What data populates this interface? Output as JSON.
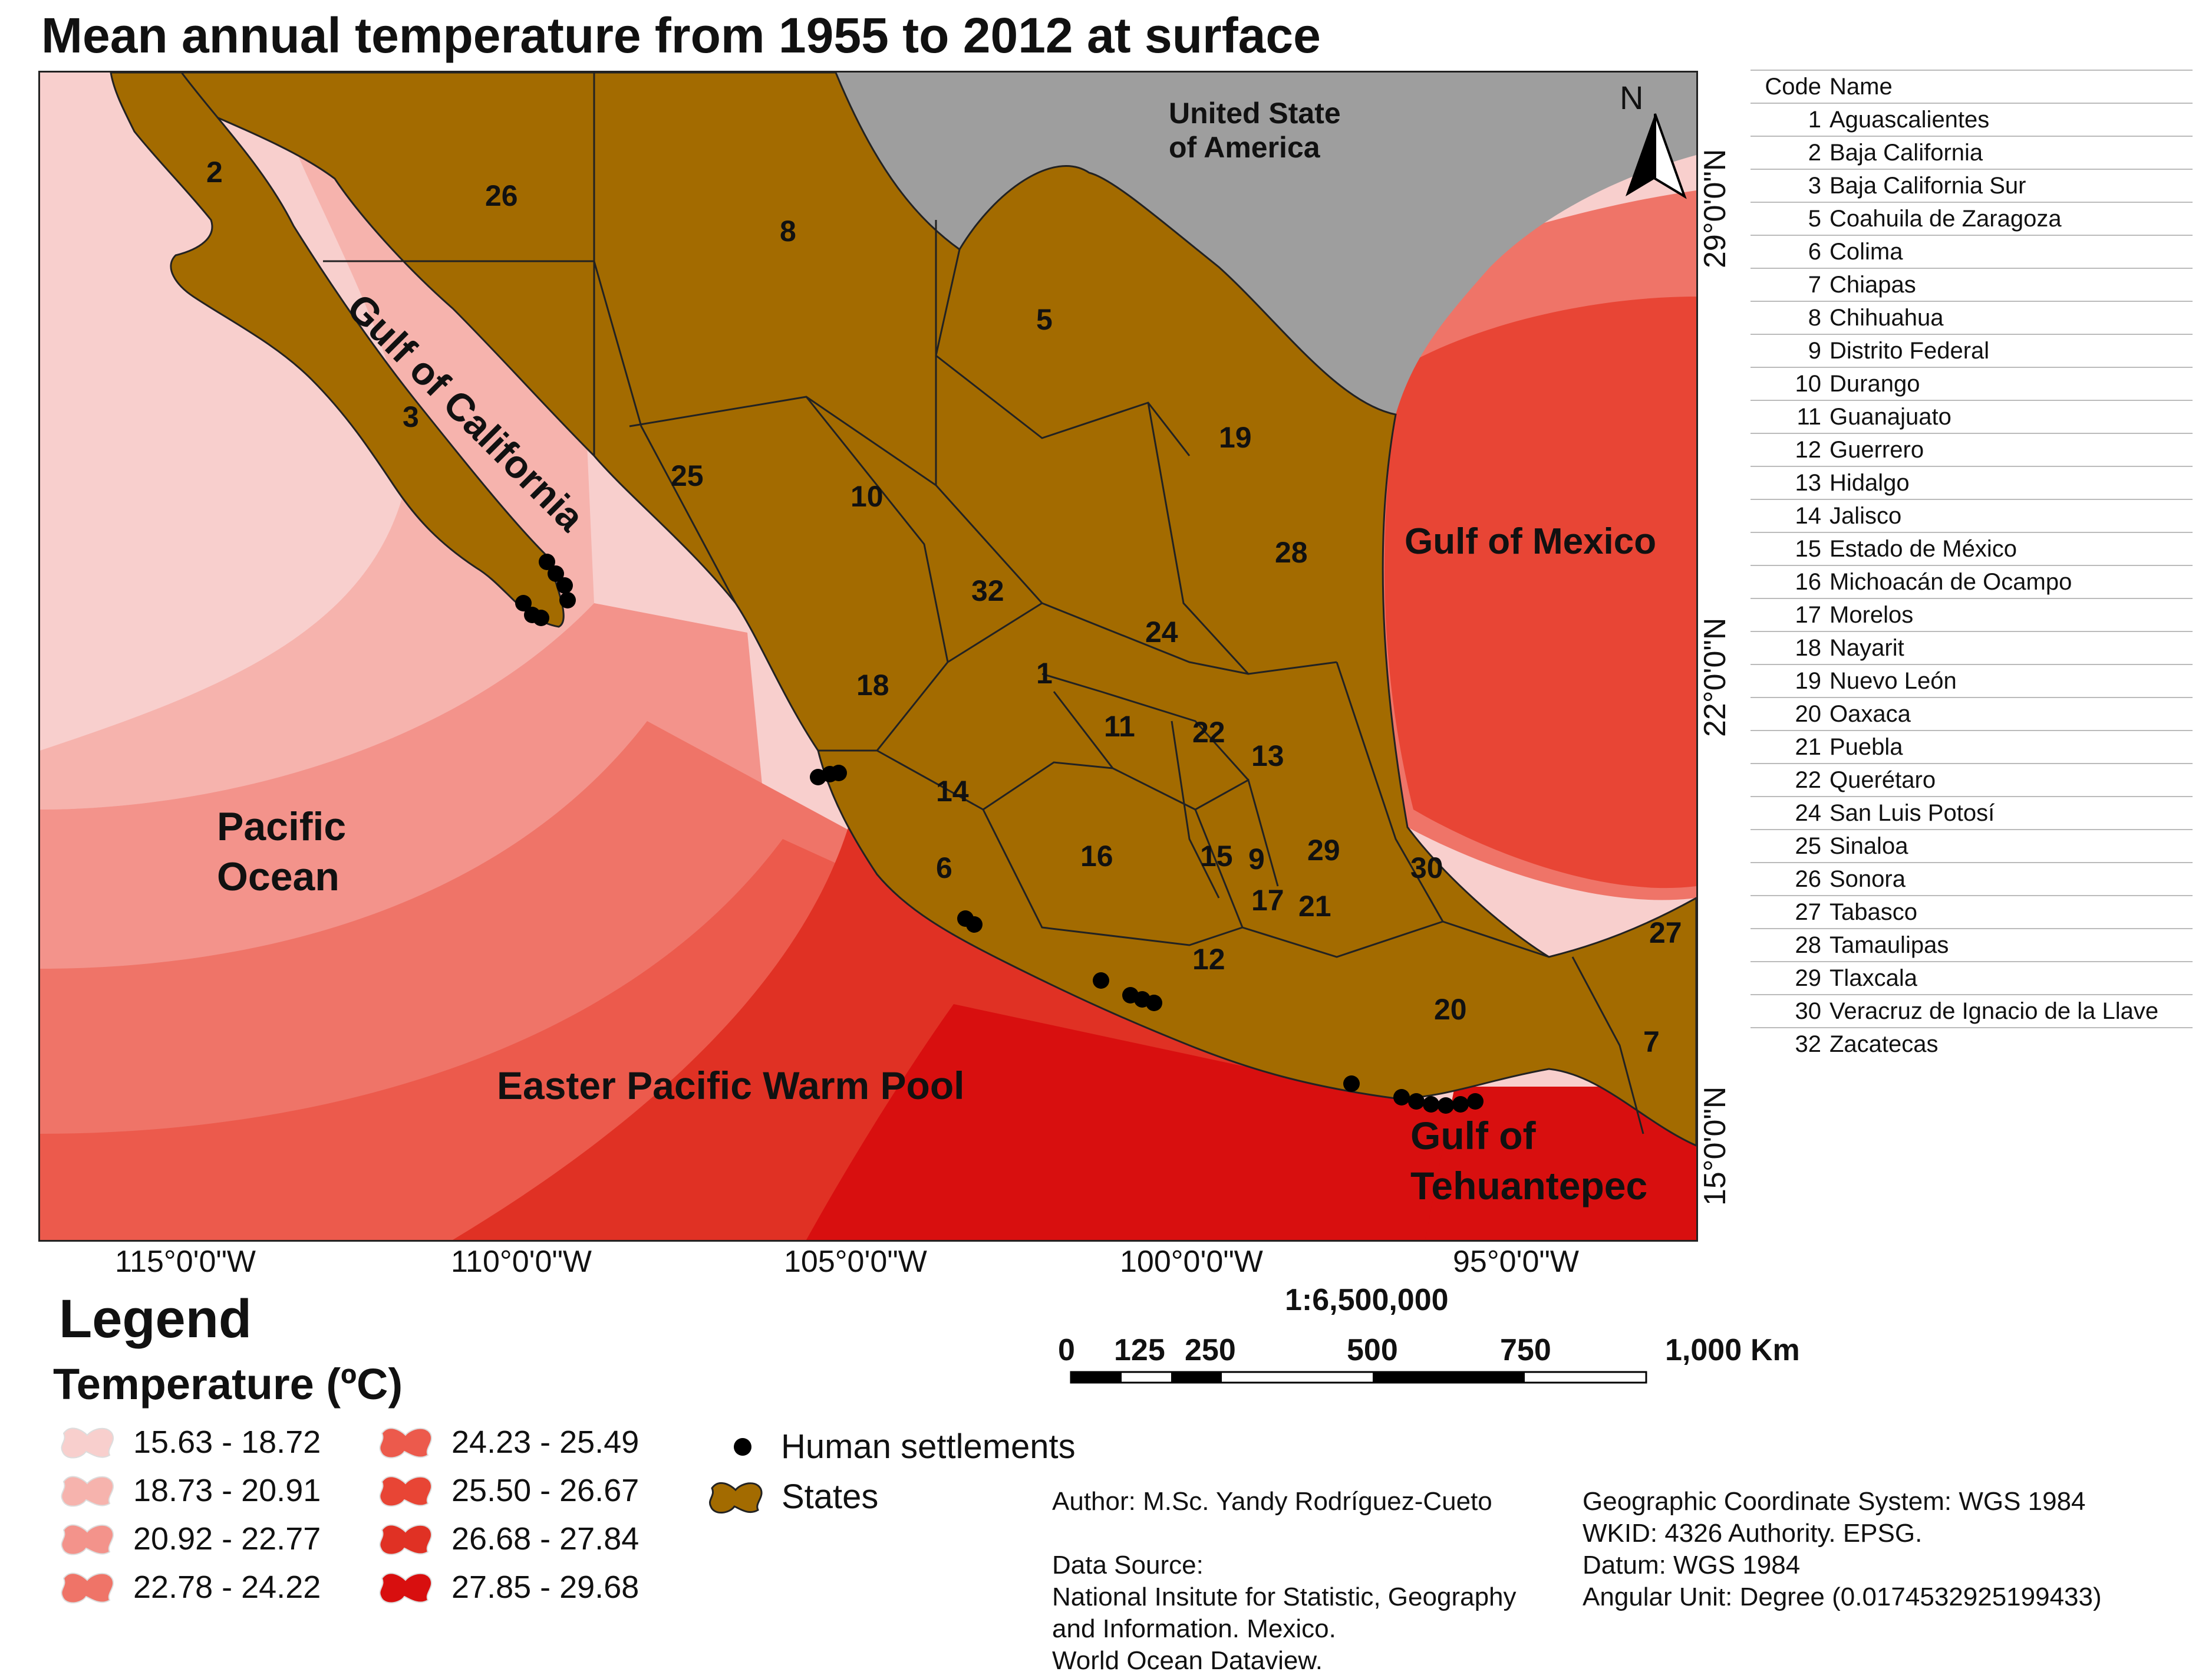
{
  "title": "Mean annual temperature from 1955 to 2012 at surface",
  "map_labels": {
    "usa": [
      "United State",
      "of America"
    ],
    "gulf_california": "Gulf of California",
    "gulf_mexico": "Gulf of Mexico",
    "pacific": [
      "Pacific",
      "Ocean"
    ],
    "warm_pool": "Easter Pacific Warm Pool",
    "tehuantepec": [
      "Gulf of",
      "Tehuantepec"
    ],
    "north": "N"
  },
  "state_numbers": [
    "2",
    "26",
    "8",
    "5",
    "3",
    "25",
    "10",
    "19",
    "28",
    "32",
    "24",
    "1",
    "18",
    "11",
    "22",
    "13",
    "14",
    "6",
    "16",
    "15",
    "9",
    "29",
    "30",
    "17",
    "21",
    "12",
    "20",
    "27",
    "7"
  ],
  "longitude_labels": [
    "115°0'0\"W",
    "110°0'0\"W",
    "105°0'0\"W",
    "100°0'0\"W",
    "95°0'0\"W"
  ],
  "latitude_labels": [
    "29°0'0\"N",
    "22°0'0\"N",
    "15°0'0\"N"
  ],
  "code_table": {
    "headers": [
      "Code",
      "Name"
    ],
    "rows": [
      [
        "1",
        "Aguascalientes"
      ],
      [
        "2",
        "Baja California"
      ],
      [
        "3",
        "Baja California Sur"
      ],
      [
        "5",
        "Coahuila de Zaragoza"
      ],
      [
        "6",
        "Colima"
      ],
      [
        "7",
        "Chiapas"
      ],
      [
        "8",
        "Chihuahua"
      ],
      [
        "9",
        "Distrito Federal"
      ],
      [
        "10",
        "Durango"
      ],
      [
        "11",
        "Guanajuato"
      ],
      [
        "12",
        "Guerrero"
      ],
      [
        "13",
        "Hidalgo"
      ],
      [
        "14",
        "Jalisco"
      ],
      [
        "15",
        "Estado de México"
      ],
      [
        "16",
        "Michoacán de Ocampo"
      ],
      [
        "17",
        "Morelos"
      ],
      [
        "18",
        "Nayarit"
      ],
      [
        "19",
        "Nuevo León"
      ],
      [
        "20",
        "Oaxaca"
      ],
      [
        "21",
        "Puebla"
      ],
      [
        "22",
        "Querétaro"
      ],
      [
        "24",
        "San Luis Potosí"
      ],
      [
        "25",
        "Sinaloa"
      ],
      [
        "26",
        "Sonora"
      ],
      [
        "27",
        "Tabasco"
      ],
      [
        "28",
        "Tamaulipas"
      ],
      [
        "29",
        "Tlaxcala"
      ],
      [
        "30",
        "Veracruz de Ignacio de la Llave"
      ],
      [
        "32",
        "Zacatecas"
      ]
    ]
  },
  "scale": {
    "ratio": "1:6,500,000",
    "ticks": [
      "0",
      "125",
      "250",
      "500",
      "750",
      "1,000"
    ],
    "unit": "Km"
  },
  "legend": {
    "title": "Legend",
    "subtitle": "Temperature (ºC)",
    "classes": [
      {
        "label": "15.63 - 18.72",
        "color": "#f8cfcd"
      },
      {
        "label": "18.73 - 20.91",
        "color": "#f6b3ad"
      },
      {
        "label": "20.92 - 22.77",
        "color": "#f3938b"
      },
      {
        "label": "22.78 - 24.22",
        "color": "#ef7468"
      },
      {
        "label": "24.23 - 25.49",
        "color": "#ec5a4c"
      },
      {
        "label": "25.50 - 26.67",
        "color": "#e84535"
      },
      {
        "label": "26.68 - 27.84",
        "color": "#e03124"
      },
      {
        "label": "27.85 - 29.68",
        "color": "#d80f0f"
      }
    ],
    "settlements_label": "Human settlements",
    "states_label": "States",
    "states_color": "#a36b00",
    "usa_color": "#9e9e9e"
  },
  "credits": {
    "author": "Author: M.Sc. Yandy Rodríguez-Cueto",
    "source_title": "Data Source:",
    "source_lines": [
      "National Insitute for Statistic, Geography",
      "and Information. Mexico.",
      "World Ocean Dataview."
    ]
  },
  "gcs": [
    "Geographic Coordinate System: WGS 1984",
    "WKID: 4326 Authority. EPSG.",
    "Datum: WGS 1984",
    "Angular Unit: Degree (0.0174532925199433)"
  ]
}
